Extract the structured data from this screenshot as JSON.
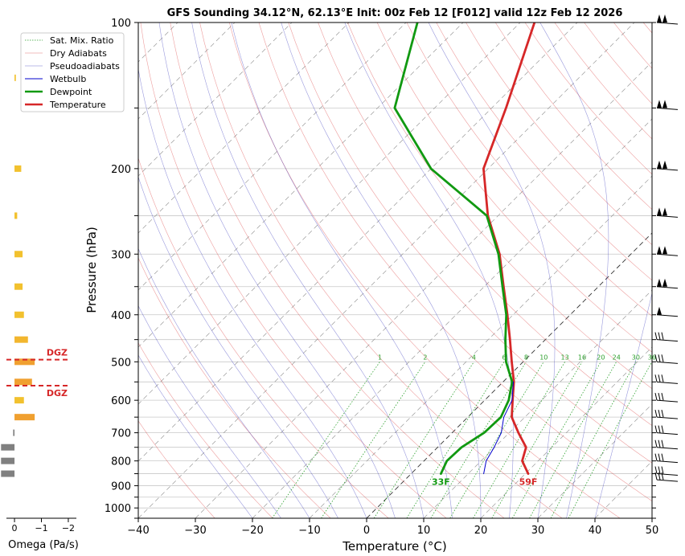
{
  "chart_data": {
    "type": "skew-t",
    "title": "GFS Sounding 34.12°N, 62.13°E Init: 00z Feb 12 [F012] valid 12z Feb 12 2026",
    "xlabel": "Temperature (°C)",
    "ylabel": "Pressure (hPa)",
    "xlim": [
      -40,
      50
    ],
    "ylim": [
      1050,
      100
    ],
    "y_scale": "log",
    "x_ticks": [
      -40,
      -30,
      -20,
      -10,
      0,
      10,
      20,
      30,
      40,
      50
    ],
    "y_ticks": [
      100,
      200,
      300,
      400,
      500,
      600,
      700,
      800,
      900,
      1000
    ],
    "legend": {
      "placement": "top-left",
      "entries": [
        {
          "label": "Sat. Mix. Ratio",
          "color": "#2ca02c",
          "style": "dotted"
        },
        {
          "label": "Dry Adiabats",
          "color": "#d62728",
          "style": "thin"
        },
        {
          "label": "Pseudoadiabats",
          "color": "#1f1fb4",
          "style": "thin"
        },
        {
          "label": "Wetbulb",
          "color": "#0000cc",
          "style": "solid"
        },
        {
          "label": "Dewpoint",
          "color": "#119911",
          "style": "thick"
        },
        {
          "label": "Temperature",
          "color": "#d62728",
          "style": "thick"
        }
      ]
    },
    "series": [
      {
        "name": "Temperature",
        "color": "#d62728",
        "points": [
          [
            850,
            20.5
          ],
          [
            800,
            17.2
          ],
          [
            750,
            15.5
          ],
          [
            700,
            11.6
          ],
          [
            650,
            7.7
          ],
          [
            600,
            4.9
          ],
          [
            550,
            1.9
          ],
          [
            500,
            -2.0
          ],
          [
            450,
            -6.2
          ],
          [
            400,
            -11.0
          ],
          [
            350,
            -16.6
          ],
          [
            300,
            -23.0
          ],
          [
            250,
            -31.8
          ],
          [
            200,
            -40.8
          ],
          [
            150,
            -47.5
          ],
          [
            100,
            -57.5
          ]
        ]
      },
      {
        "name": "Dewpoint",
        "color": "#119911",
        "points": [
          [
            850,
            5.2
          ],
          [
            800,
            4.0
          ],
          [
            750,
            4.2
          ],
          [
            700,
            5.6
          ],
          [
            650,
            5.8
          ],
          [
            600,
            4.2
          ],
          [
            550,
            1.6
          ],
          [
            500,
            -3.0
          ],
          [
            450,
            -7.0
          ],
          [
            400,
            -11.2
          ],
          [
            350,
            -16.8
          ],
          [
            300,
            -23.2
          ],
          [
            250,
            -32.0
          ],
          [
            200,
            -50.0
          ],
          [
            150,
            -67.0
          ],
          [
            100,
            -78.0
          ]
        ]
      },
      {
        "name": "Wetbulb",
        "color": "#0000cc",
        "points": [
          [
            850,
            12.7
          ],
          [
            800,
            10.9
          ],
          [
            750,
            9.9
          ],
          [
            700,
            8.6
          ],
          [
            650,
            6.3
          ],
          [
            600,
            4.8
          ],
          [
            550,
            1.8
          ]
        ]
      }
    ],
    "surface_labels": {
      "temperature": "59F",
      "dewpoint": "33F"
    },
    "mixing_ratio_labels": [
      "1",
      "2",
      "4",
      "6",
      "8",
      "10",
      "13",
      "16",
      "20",
      "24",
      "30",
      "36"
    ],
    "mixing_ratio_values": [
      1,
      2,
      4,
      6,
      8,
      10,
      13,
      16,
      20,
      24,
      30,
      36
    ],
    "dgz": {
      "top_hpa": 495,
      "bottom_hpa": 560,
      "label": "DGZ"
    },
    "omega": {
      "xlabel": "Omega (Pa/s)",
      "x_ticks": [
        "0",
        "−1",
        "−2"
      ],
      "xlim": [
        0.3,
        -2.3
      ],
      "levels": [
        {
          "p": 130,
          "value": -0.05,
          "color": "#f2c12e"
        },
        {
          "p": 200,
          "value": -0.25,
          "color": "#f2c12e"
        },
        {
          "p": 250,
          "value": -0.1,
          "color": "#f2c12e"
        },
        {
          "p": 300,
          "value": -0.3,
          "color": "#f2c12e"
        },
        {
          "p": 350,
          "value": -0.3,
          "color": "#f2c12e"
        },
        {
          "p": 400,
          "value": -0.35,
          "color": "#f2c12e"
        },
        {
          "p": 450,
          "value": -0.5,
          "color": "#f2b62e"
        },
        {
          "p": 500,
          "value": -0.75,
          "color": "#f0a030"
        },
        {
          "p": 550,
          "value": -0.65,
          "color": "#f0a030"
        },
        {
          "p": 600,
          "value": -0.35,
          "color": "#f2c12e"
        },
        {
          "p": 650,
          "value": -0.75,
          "color": "#f0a030"
        },
        {
          "p": 700,
          "value": 0.05,
          "color": "#808080"
        },
        {
          "p": 750,
          "value": 0.5,
          "color": "#808080"
        },
        {
          "p": 800,
          "value": 0.5,
          "color": "#808080"
        },
        {
          "p": 850,
          "value": 0.5,
          "color": "#808080"
        }
      ]
    },
    "wind_barb_levels_hpa": [
      100,
      150,
      200,
      250,
      300,
      350,
      400,
      450,
      500,
      550,
      600,
      650,
      700,
      750,
      800,
      850,
      875
    ]
  }
}
